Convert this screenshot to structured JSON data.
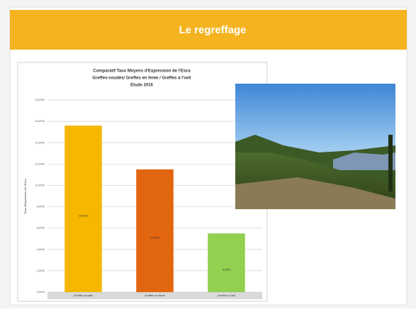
{
  "slide_title": "Le regreffage",
  "chart_data": {
    "type": "bar",
    "title": [
      "Comparatif Taux Moyens d'Expression de l'Esca",
      "Greffes-soudés/ Greffes en fente / Greffes à l'oeil",
      "Etude 2016"
    ],
    "y_label": "Taux d'Expression de l'Esca",
    "categories": [
      "Greffés soudés",
      "Greffes en fente",
      "Greffes à l'oeil"
    ],
    "values": [
      15.6,
      11.5,
      5.5
    ],
    "value_labels": [
      "15,60%",
      "11,50%",
      "5,50%"
    ],
    "colors": [
      "#f5b700",
      "#e2650f",
      "#92d050"
    ],
    "ylim": [
      0,
      18
    ],
    "yticks": [
      {
        "value": 0,
        "label": "0,00%"
      },
      {
        "value": 2,
        "label": "2,00%"
      },
      {
        "value": 4,
        "label": "4,00%"
      },
      {
        "value": 6,
        "label": "6,00%"
      },
      {
        "value": 8,
        "label": "8,00%"
      },
      {
        "value": 10,
        "label": "10,00%"
      },
      {
        "value": 12,
        "label": "12,00%"
      },
      {
        "value": 14,
        "label": "14,00%"
      },
      {
        "value": 16,
        "label": "16,00%"
      },
      {
        "value": 18,
        "label": "18,00%"
      }
    ],
    "grid": true
  }
}
